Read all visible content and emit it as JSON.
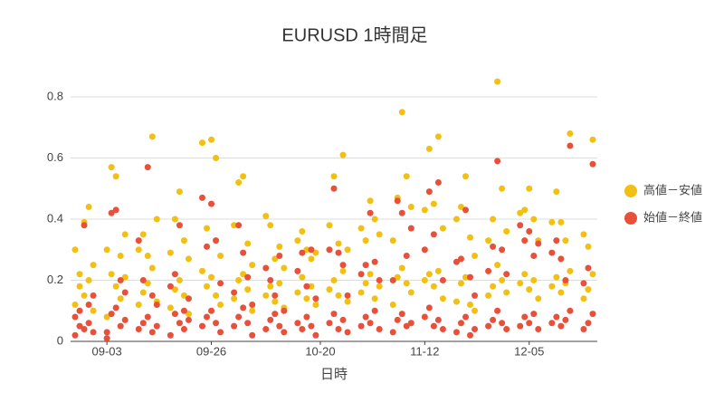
{
  "chart_data": {
    "type": "scatter",
    "title": "EURUSD 1時間足",
    "x_label": "日時",
    "x": [
      "08-27",
      "08-27",
      "08-28",
      "08-28",
      "08-29",
      "08-29",
      "08-30",
      "08-30",
      "08-31",
      "08-31",
      "09-03",
      "09-03",
      "09-04",
      "09-04",
      "09-05",
      "09-05",
      "09-06",
      "09-06",
      "09-07",
      "09-07",
      "09-10",
      "09-10",
      "09-11",
      "09-11",
      "09-12",
      "09-12",
      "09-13",
      "09-13",
      "09-14",
      "09-14",
      "09-17",
      "09-17",
      "09-18",
      "09-18",
      "09-19",
      "09-19",
      "09-20",
      "09-20",
      "09-21",
      "09-21",
      "09-24",
      "09-24",
      "09-25",
      "09-25",
      "09-26",
      "09-26",
      "09-27",
      "09-27",
      "09-28",
      "09-28",
      "10-01",
      "10-01",
      "10-02",
      "10-02",
      "10-03",
      "10-03",
      "10-04",
      "10-04",
      "10-05",
      "10-05",
      "10-08",
      "10-08",
      "10-09",
      "10-09",
      "10-10",
      "10-10",
      "10-11",
      "10-11",
      "10-12",
      "10-12",
      "10-15",
      "10-15",
      "10-16",
      "10-16",
      "10-17",
      "10-17",
      "10-18",
      "10-18",
      "10-19",
      "10-19",
      "10-22",
      "10-22",
      "10-23",
      "10-23",
      "10-24",
      "10-24",
      "10-25",
      "10-25",
      "10-26",
      "10-26",
      "10-29",
      "10-29",
      "10-30",
      "10-30",
      "10-31",
      "10-31",
      "11-01",
      "11-01",
      "11-02",
      "11-02",
      "11-05",
      "11-05",
      "11-06",
      "11-06",
      "11-07",
      "11-07",
      "11-08",
      "11-08",
      "11-09",
      "11-09",
      "11-12",
      "11-12",
      "11-13",
      "11-13",
      "11-14",
      "11-14",
      "11-15",
      "11-15",
      "11-16",
      "11-16",
      "11-19",
      "11-19",
      "11-20",
      "11-20",
      "11-21",
      "11-21",
      "11-22",
      "11-22",
      "11-23",
      "11-23",
      "11-26",
      "11-26",
      "11-27",
      "11-27",
      "11-28",
      "11-28",
      "11-29",
      "11-29",
      "11-30",
      "11-30",
      "12-03",
      "12-03",
      "12-04",
      "12-04",
      "12-05",
      "12-05",
      "12-06",
      "12-06",
      "12-07",
      "12-07",
      "12-10",
      "12-10",
      "12-11",
      "12-11",
      "12-12",
      "12-12",
      "12-13",
      "12-13",
      "12-14",
      "12-14",
      "12-17",
      "12-17",
      "12-18",
      "12-18",
      "12-19",
      "12-19"
    ],
    "series": [
      {
        "name": "高値－安値",
        "color": "#f2c012",
        "values": [
          0.3,
          0.12,
          0.22,
          0.18,
          0.39,
          0.15,
          0.44,
          0.2,
          0.25,
          0.1,
          0.3,
          0.08,
          0.57,
          0.22,
          0.54,
          0.18,
          0.28,
          0.14,
          0.35,
          0.21,
          0.3,
          0.12,
          0.35,
          0.16,
          0.28,
          0.19,
          0.67,
          0.24,
          0.4,
          0.13,
          0.29,
          0.11,
          0.4,
          0.17,
          0.49,
          0.2,
          0.33,
          0.15,
          0.27,
          0.09,
          0.65,
          0.23,
          0.37,
          0.18,
          0.66,
          0.21,
          0.6,
          0.15,
          0.28,
          0.12,
          0.38,
          0.14,
          0.52,
          0.2,
          0.54,
          0.22,
          0.32,
          0.17,
          0.25,
          0.1,
          0.41,
          0.15,
          0.38,
          0.18,
          0.27,
          0.13,
          0.31,
          0.19,
          0.24,
          0.11,
          0.33,
          0.16,
          0.36,
          0.21,
          0.3,
          0.14,
          0.27,
          0.18,
          0.29,
          0.12,
          0.38,
          0.17,
          0.54,
          0.2,
          0.32,
          0.15,
          0.61,
          0.23,
          0.3,
          0.13,
          0.37,
          0.16,
          0.33,
          0.19,
          0.46,
          0.22,
          0.4,
          0.14,
          0.35,
          0.18,
          0.33,
          0.12,
          0.47,
          0.21,
          0.75,
          0.24,
          0.54,
          0.19,
          0.44,
          0.16,
          0.43,
          0.2,
          0.63,
          0.22,
          0.45,
          0.18,
          0.67,
          0.23,
          0.37,
          0.14,
          0.4,
          0.13,
          0.44,
          0.19,
          0.54,
          0.21,
          0.34,
          0.12,
          0.28,
          0.1,
          0.33,
          0.15,
          0.4,
          0.18,
          0.85,
          0.25,
          0.5,
          0.2,
          0.36,
          0.16,
          0.42,
          0.19,
          0.43,
          0.22,
          0.5,
          0.17,
          0.4,
          0.2,
          0.33,
          0.14,
          0.39,
          0.18,
          0.49,
          0.21,
          0.39,
          0.16,
          0.33,
          0.19,
          0.68,
          0.23,
          0.35,
          0.14,
          0.31,
          0.17,
          0.66,
          0.22
        ]
      },
      {
        "name": "始値－終値",
        "color": "#e8503a",
        "values": [
          0.08,
          0.02,
          0.05,
          0.1,
          0.38,
          0.04,
          0.12,
          0.06,
          0.15,
          0.03,
          0.03,
          0.01,
          0.42,
          0.09,
          0.43,
          0.11,
          0.2,
          0.05,
          0.16,
          0.07,
          0.33,
          0.04,
          0.2,
          0.06,
          0.57,
          0.08,
          0.15,
          0.03,
          0.12,
          0.05,
          0.18,
          0.02,
          0.22,
          0.09,
          0.38,
          0.06,
          0.1,
          0.04,
          0.14,
          0.07,
          0.47,
          0.05,
          0.31,
          0.08,
          0.45,
          0.1,
          0.33,
          0.06,
          0.19,
          0.03,
          0.16,
          0.05,
          0.38,
          0.08,
          0.29,
          0.11,
          0.21,
          0.06,
          0.12,
          0.02,
          0.24,
          0.04,
          0.2,
          0.07,
          0.15,
          0.09,
          0.28,
          0.05,
          0.1,
          0.03,
          0.23,
          0.06,
          0.29,
          0.04,
          0.18,
          0.08,
          0.3,
          0.05,
          0.14,
          0.02,
          0.3,
          0.06,
          0.5,
          0.09,
          0.29,
          0.04,
          0.25,
          0.07,
          0.15,
          0.03,
          0.22,
          0.05,
          0.25,
          0.08,
          0.42,
          0.06,
          0.26,
          0.1,
          0.2,
          0.04,
          0.2,
          0.03,
          0.46,
          0.07,
          0.42,
          0.09,
          0.28,
          0.05,
          0.37,
          0.06,
          0.3,
          0.08,
          0.49,
          0.11,
          0.35,
          0.05,
          0.52,
          0.07,
          0.2,
          0.04,
          0.26,
          0.03,
          0.27,
          0.06,
          0.43,
          0.08,
          0.21,
          0.02,
          0.15,
          0.04,
          0.23,
          0.05,
          0.31,
          0.07,
          0.59,
          0.1,
          0.3,
          0.06,
          0.22,
          0.04,
          0.38,
          0.05,
          0.33,
          0.08,
          0.36,
          0.06,
          0.28,
          0.09,
          0.32,
          0.04,
          0.29,
          0.06,
          0.33,
          0.08,
          0.27,
          0.05,
          0.2,
          0.07,
          0.64,
          0.1,
          0.19,
          0.04,
          0.24,
          0.06,
          0.58,
          0.09
        ]
      }
    ],
    "xlim": [
      "08-26",
      "12-20"
    ],
    "xticks": [
      "09-03",
      "09-26",
      "10-20",
      "11-12",
      "12-05"
    ],
    "ylim": [
      0,
      0.88
    ],
    "yticks": [
      0,
      0.2,
      0.4,
      0.6,
      0.8
    ],
    "grid": true,
    "legend": "right"
  }
}
